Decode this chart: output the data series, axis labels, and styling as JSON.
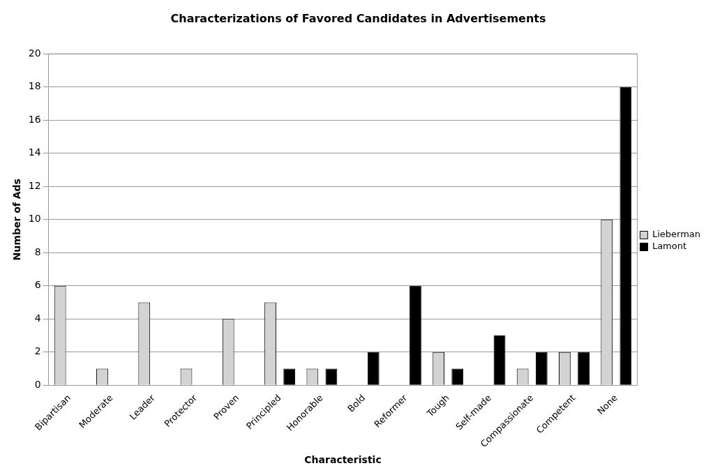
{
  "chart_data": {
    "type": "bar",
    "title": "Characterizations of Favored Candidates in Advertisements",
    "xlabel": "Characteristic",
    "ylabel": "Number of Ads",
    "categories": [
      "Bipartisan",
      "Moderate",
      "Leader",
      "Protector",
      "Proven",
      "Principled",
      "Honorable",
      "Bold",
      "Reformer",
      "Tough",
      "Self-made",
      "Compassionate",
      "Competent",
      "None"
    ],
    "series": [
      {
        "name": "Lieberman",
        "color": "#d3d3d3",
        "values": [
          6,
          1,
          5,
          1,
          4,
          5,
          1,
          0,
          0,
          2,
          0,
          1,
          2,
          10
        ]
      },
      {
        "name": "Lamont",
        "color": "#000000",
        "values": [
          0,
          0,
          0,
          0,
          0,
          1,
          1,
          2,
          6,
          1,
          3,
          2,
          2,
          18
        ]
      }
    ],
    "ylim": [
      0,
      20
    ],
    "yticks": [
      0,
      2,
      4,
      6,
      8,
      10,
      12,
      14,
      16,
      18,
      20
    ],
    "grid": "y",
    "legend": "right"
  }
}
